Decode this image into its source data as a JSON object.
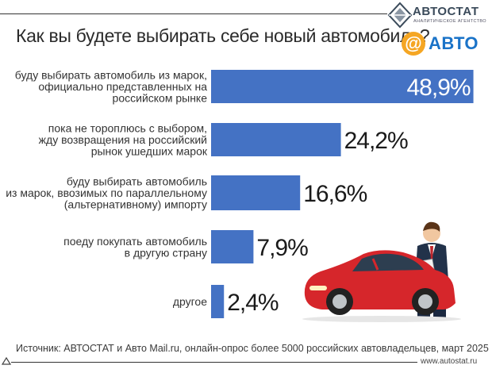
{
  "title": "Как вы будете выбирать себе новый автомобиль?",
  "logo": {
    "name": "АВТОСТАТ",
    "subtitle": "АНАЛИТИЧЕСКОЕ АГЕНТСТВО"
  },
  "partner": {
    "at": "@",
    "name": "АВТО"
  },
  "source": "Источник: АВТОСТАТ и Авто Mail.ru, онлайн-опрос более 5000 российских автовладельцев, март 2025",
  "site": "www.autostat.ru",
  "colors": {
    "bar": "#4472c4",
    "accent": "#f5a623",
    "car": "#d6262b"
  },
  "icons": [
    "autostat-logo-icon",
    "mail-at-icon",
    "car-illustration-icon",
    "businessman-icon",
    "triangle-icon"
  ],
  "chart_data": {
    "type": "bar",
    "orientation": "horizontal",
    "title": "Как вы будете выбирать себе новый автомобиль?",
    "unit": "%",
    "categories": [
      [
        "буду выбирать автомобиль из марок,",
        "официально представленных на",
        "российском рынке"
      ],
      [
        "пока не тороплюсь с выбором,",
        "жду возвращения на российский",
        "рынок ушедших марок"
      ],
      [
        "буду выбирать автомобиль",
        "из марок, ввозимых по параллельному",
        "(альтернативному) импорту"
      ],
      [
        "поеду покупать автомобиль",
        "в другую страну"
      ],
      [
        "другое"
      ]
    ],
    "values": [
      48.9,
      24.2,
      16.6,
      7.9,
      2.4
    ],
    "labels": [
      "48,9%",
      "24,2%",
      "16,6%",
      "7,9%",
      "2,4%"
    ],
    "xlim": [
      0,
      50
    ],
    "grid": false,
    "legend": "none"
  }
}
